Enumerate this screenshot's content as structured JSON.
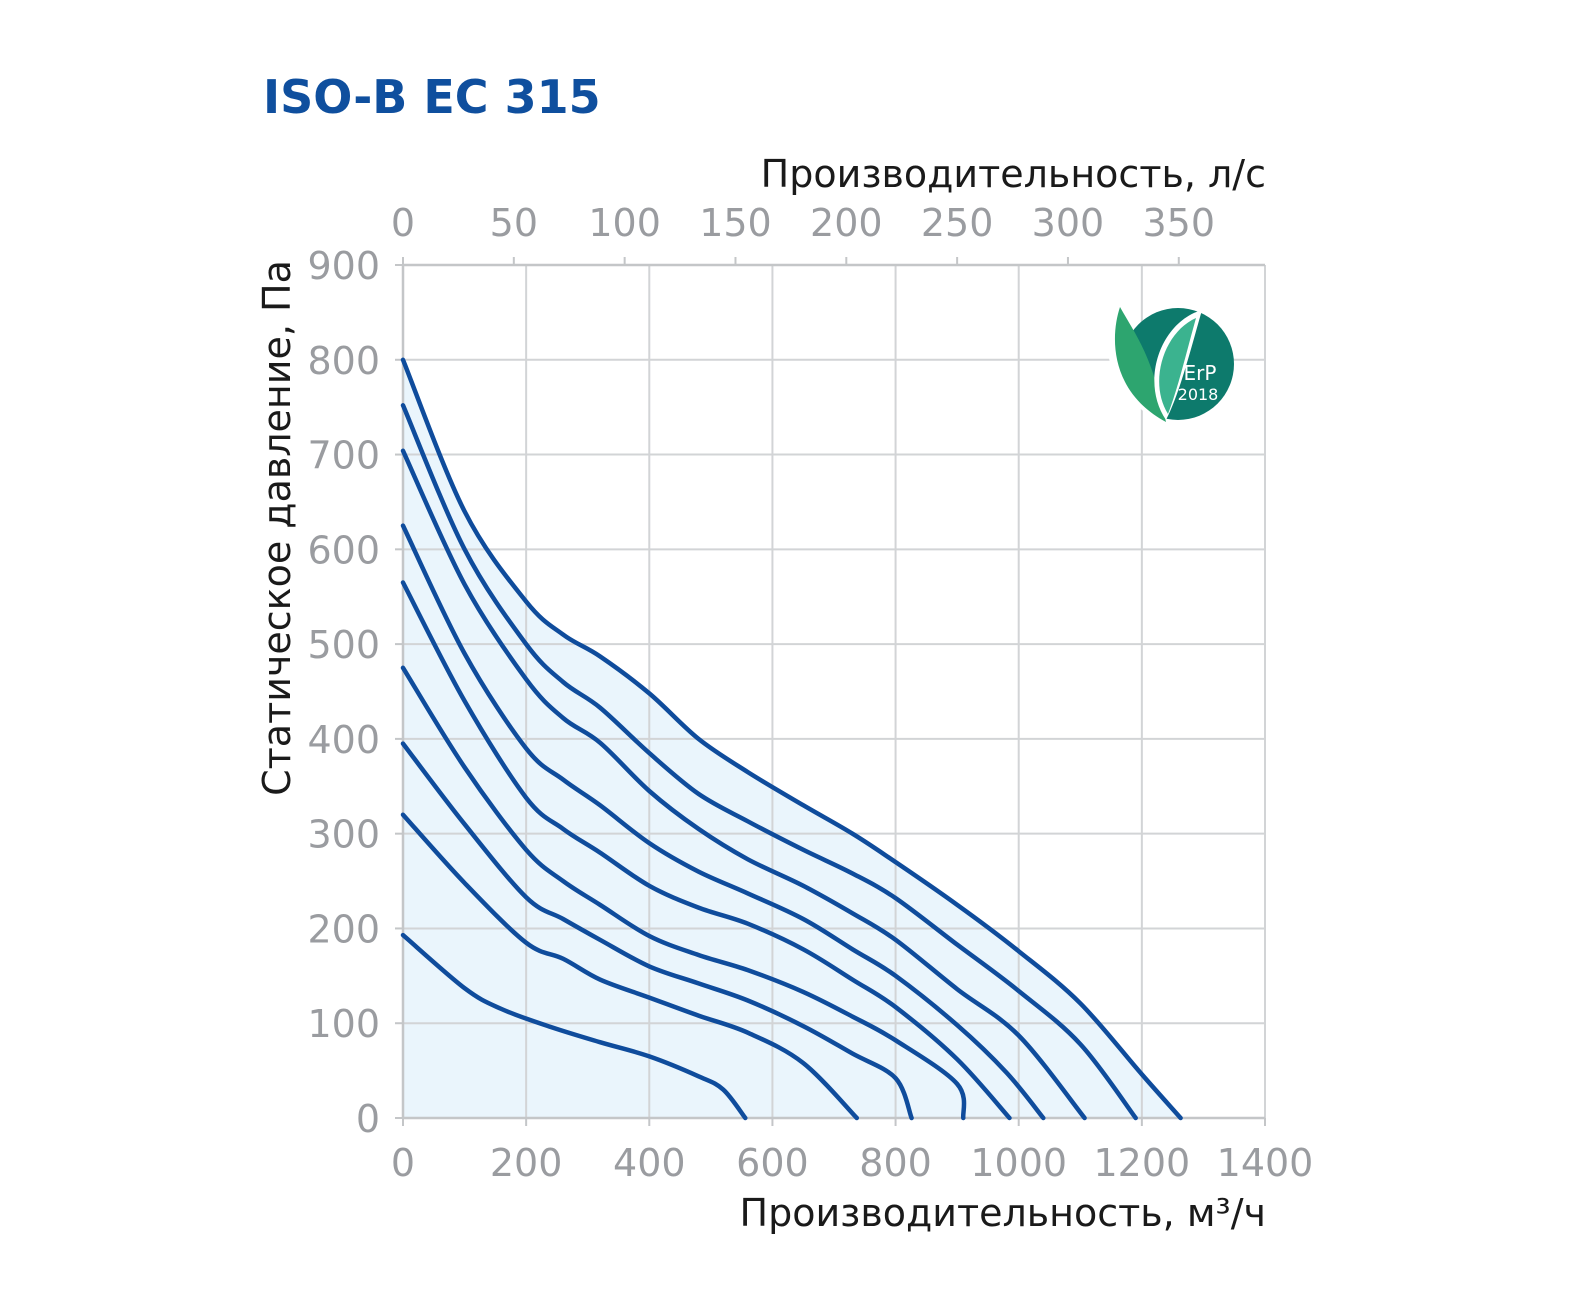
{
  "chart_data": {
    "type": "line",
    "title": "ISO-B EC 315",
    "xlabel": "Производительность, м³/ч",
    "x2label": "Производительность, л/с",
    "ylabel": "Статическое давление, Па",
    "xlim": [
      0,
      1400
    ],
    "ylim": [
      0,
      900
    ],
    "x2lim": [
      0,
      388.9
    ],
    "x_ticks": [
      "0",
      "200",
      "400",
      "600",
      "800",
      "1000",
      "1200",
      "1400"
    ],
    "x2_ticks": [
      "0",
      "50",
      "100",
      "150",
      "200",
      "250",
      "300",
      "350"
    ],
    "y_ticks": [
      "0",
      "100",
      "200",
      "300",
      "400",
      "500",
      "600",
      "700",
      "800",
      "900"
    ],
    "grid": true,
    "line_color": "#0f4c9c",
    "fill_color": "#eaf5fc",
    "badge": {
      "top": "ErP",
      "bottom": "2018",
      "color": "#0d7a6c"
    },
    "series": [
      {
        "values": [
          [
            0,
            800
          ],
          [
            100,
            640
          ],
          [
            200,
            545
          ],
          [
            260,
            510
          ],
          [
            320,
            487
          ],
          [
            400,
            448
          ],
          [
            480,
            400
          ],
          [
            560,
            365
          ],
          [
            650,
            330
          ],
          [
            730,
            300
          ],
          [
            800,
            270
          ],
          [
            900,
            225
          ],
          [
            1000,
            176
          ],
          [
            1100,
            121
          ],
          [
            1200,
            46
          ],
          [
            1263,
            0
          ]
        ]
      },
      {
        "values": [
          [
            0,
            752
          ],
          [
            100,
            600
          ],
          [
            200,
            500
          ],
          [
            260,
            460
          ],
          [
            320,
            433
          ],
          [
            400,
            385
          ],
          [
            480,
            342
          ],
          [
            560,
            313
          ],
          [
            650,
            283
          ],
          [
            730,
            258
          ],
          [
            800,
            232
          ],
          [
            900,
            183
          ],
          [
            1000,
            134
          ],
          [
            1100,
            78
          ],
          [
            1190,
            0
          ]
        ]
      },
      {
        "values": [
          [
            0,
            704
          ],
          [
            100,
            563
          ],
          [
            200,
            463
          ],
          [
            260,
            422
          ],
          [
            320,
            396
          ],
          [
            400,
            345
          ],
          [
            480,
            305
          ],
          [
            560,
            273
          ],
          [
            650,
            245
          ],
          [
            730,
            216
          ],
          [
            800,
            188
          ],
          [
            900,
            136
          ],
          [
            1000,
            87
          ],
          [
            1107,
            0
          ]
        ]
      },
      {
        "values": [
          [
            0,
            625
          ],
          [
            100,
            490
          ],
          [
            200,
            390
          ],
          [
            260,
            357
          ],
          [
            320,
            330
          ],
          [
            400,
            290
          ],
          [
            480,
            260
          ],
          [
            560,
            237
          ],
          [
            650,
            210
          ],
          [
            730,
            178
          ],
          [
            800,
            150
          ],
          [
            900,
            98
          ],
          [
            980,
            48
          ],
          [
            1040,
            0
          ]
        ]
      },
      {
        "values": [
          [
            0,
            565
          ],
          [
            100,
            440
          ],
          [
            200,
            338
          ],
          [
            260,
            305
          ],
          [
            320,
            280
          ],
          [
            400,
            245
          ],
          [
            480,
            222
          ],
          [
            560,
            205
          ],
          [
            650,
            178
          ],
          [
            730,
            146
          ],
          [
            800,
            117
          ],
          [
            900,
            62
          ],
          [
            985,
            0
          ]
        ]
      },
      {
        "values": [
          [
            0,
            475
          ],
          [
            100,
            370
          ],
          [
            200,
            283
          ],
          [
            260,
            250
          ],
          [
            320,
            225
          ],
          [
            400,
            192
          ],
          [
            480,
            172
          ],
          [
            560,
            156
          ],
          [
            650,
            133
          ],
          [
            730,
            107
          ],
          [
            800,
            82
          ],
          [
            900,
            36
          ],
          [
            910,
            0
          ]
        ]
      },
      {
        "values": [
          [
            0,
            395
          ],
          [
            100,
            310
          ],
          [
            200,
            233
          ],
          [
            260,
            210
          ],
          [
            320,
            188
          ],
          [
            400,
            160
          ],
          [
            480,
            142
          ],
          [
            560,
            124
          ],
          [
            650,
            97
          ],
          [
            730,
            68
          ],
          [
            800,
            42
          ],
          [
            826,
            0
          ]
        ]
      },
      {
        "values": [
          [
            0,
            320
          ],
          [
            100,
            248
          ],
          [
            200,
            185
          ],
          [
            260,
            168
          ],
          [
            320,
            146
          ],
          [
            400,
            127
          ],
          [
            480,
            108
          ],
          [
            560,
            90
          ],
          [
            650,
            58
          ],
          [
            737,
            0
          ]
        ]
      },
      {
        "values": [
          [
            0,
            193
          ],
          [
            100,
            137
          ],
          [
            160,
            115
          ],
          [
            240,
            96
          ],
          [
            320,
            80
          ],
          [
            400,
            65
          ],
          [
            480,
            44
          ],
          [
            520,
            30
          ],
          [
            556,
            0
          ]
        ]
      }
    ]
  }
}
